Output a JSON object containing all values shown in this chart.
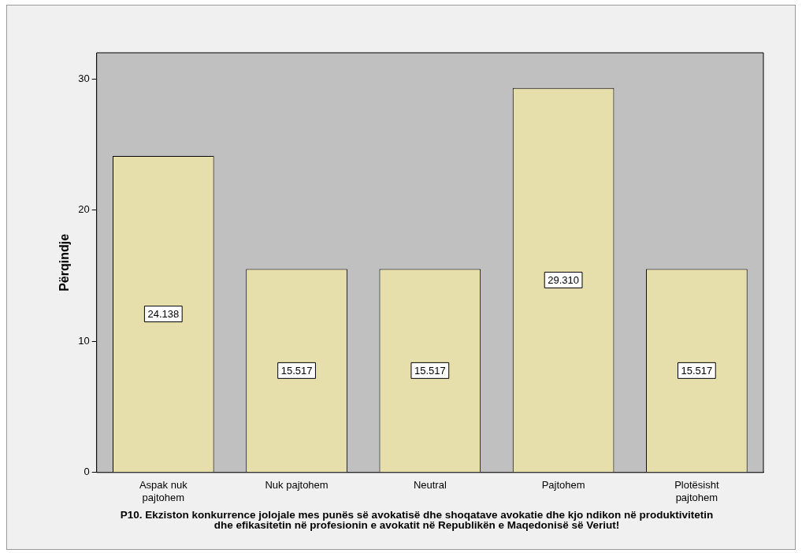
{
  "chart_data": {
    "type": "bar",
    "ylabel": "Përqindje",
    "xlabel": "P10. Ekziston konkurrence jolojale mes punës së avokatisë dhe shoqatave avokatie dhe kjo ndikon në produktivitetin dhe efikasitetin në profesionin e avokatit në Republikën e Maqedonisë së Veriut!",
    "categories": [
      "Aspak nuk pajtohem",
      "Nuk pajtohem",
      "Neutral",
      "Pajtohem",
      "Plotësisht pajtohem"
    ],
    "values": [
      24.138,
      15.517,
      15.517,
      29.31,
      15.517
    ],
    "value_labels": [
      "24.138",
      "15.517",
      "15.517",
      "29.310",
      "15.517"
    ],
    "color": "#e6dfab",
    "ylim": [
      0,
      32
    ],
    "yticks": [
      0,
      10,
      20,
      30
    ],
    "grid": false,
    "legend": false
  }
}
